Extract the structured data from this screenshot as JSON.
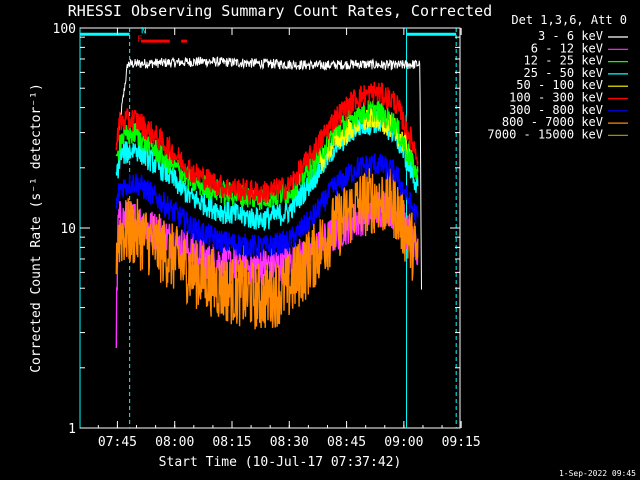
{
  "chart_data": {
    "type": "line",
    "title": "RHESSI Observing Summary Count Rates, Corrected",
    "xlabel": "Start Time (10-Jul-17 07:37:42)",
    "ylabel": "Corrected Count Rate (s⁻¹ detector⁻¹)",
    "yscale": "log",
    "ylim": [
      1,
      100
    ],
    "xlim_minutes": [
      -2.5,
      97.0
    ],
    "xticks": [
      {
        "label": "07:45",
        "minute": 7.3
      },
      {
        "label": "08:00",
        "minute": 22.3
      },
      {
        "label": "08:15",
        "minute": 37.3
      },
      {
        "label": "08:30",
        "minute": 52.3
      },
      {
        "label": "08:45",
        "minute": 67.3
      },
      {
        "label": "09:00",
        "minute": 82.3
      },
      {
        "label": "09:15",
        "minute": 97.3
      }
    ],
    "yticks": [
      {
        "label": "1",
        "value": 1
      },
      {
        "label": "10",
        "value": 10
      },
      {
        "label": "100",
        "value": 100
      }
    ],
    "legend_position": "right",
    "legend_header": "Det 1,3,6, Att 0",
    "series": [
      {
        "name": "3 - 6 keV",
        "color": "#ffffff",
        "values": [
          [
            7.0,
            25
          ],
          [
            10.0,
            66
          ],
          [
            20.0,
            67
          ],
          [
            30.0,
            68
          ],
          [
            40.0,
            67
          ],
          [
            50.0,
            66
          ],
          [
            60.0,
            65
          ],
          [
            70.0,
            66
          ],
          [
            80.0,
            65
          ],
          [
            86.5,
            66
          ],
          [
            87.0,
            3
          ]
        ]
      },
      {
        "name": "6 - 12 keV",
        "color": "#ff33ff",
        "values": [
          [
            7.0,
            3
          ],
          [
            7.5,
            11
          ],
          [
            12.0,
            11
          ],
          [
            20.0,
            9
          ],
          [
            30.0,
            7
          ],
          [
            40.0,
            6.5
          ],
          [
            50.0,
            6.5
          ],
          [
            58.0,
            7.5
          ],
          [
            66.0,
            10
          ],
          [
            73.0,
            12
          ],
          [
            78.0,
            13
          ],
          [
            82.0,
            11
          ],
          [
            86.0,
            7
          ]
        ]
      },
      {
        "name": "12 - 25 keV",
        "color": "#00ff00",
        "values": [
          [
            7.0,
            20
          ],
          [
            8.0,
            28
          ],
          [
            12.0,
            30
          ],
          [
            20.0,
            22
          ],
          [
            27.0,
            17
          ],
          [
            35.0,
            15
          ],
          [
            45.0,
            14
          ],
          [
            52.0,
            15
          ],
          [
            58.0,
            20
          ],
          [
            64.0,
            30
          ],
          [
            70.0,
            37
          ],
          [
            75.0,
            39
          ],
          [
            80.0,
            33
          ],
          [
            86.0,
            18
          ]
        ]
      },
      {
        "name": "25 - 50 keV",
        "color": "#00ffff",
        "values": [
          [
            7.0,
            18
          ],
          [
            8.0,
            23
          ],
          [
            12.0,
            25
          ],
          [
            20.0,
            19
          ],
          [
            27.0,
            14
          ],
          [
            35.0,
            12
          ],
          [
            45.0,
            11
          ],
          [
            52.0,
            12
          ],
          [
            58.0,
            17
          ],
          [
            64.0,
            25
          ],
          [
            70.0,
            32
          ],
          [
            75.0,
            34
          ],
          [
            80.0,
            30
          ],
          [
            86.0,
            16
          ]
        ]
      },
      {
        "name": "50 - 100 keV",
        "color": "#ffff00",
        "values": [
          [
            60.0,
            21
          ],
          [
            64.0,
            27
          ],
          [
            70.0,
            33
          ],
          [
            75.0,
            36
          ],
          [
            80.0,
            31
          ],
          [
            84.0,
            24
          ]
        ]
      },
      {
        "name": "100 - 300 keV",
        "color": "#ff0000",
        "values": [
          [
            7.0,
            28
          ],
          [
            8.0,
            34
          ],
          [
            12.0,
            35
          ],
          [
            20.0,
            26
          ],
          [
            27.0,
            19
          ],
          [
            35.0,
            16
          ],
          [
            45.0,
            15
          ],
          [
            52.0,
            16
          ],
          [
            58.0,
            23
          ],
          [
            64.0,
            35
          ],
          [
            70.0,
            45
          ],
          [
            75.0,
            48
          ],
          [
            80.0,
            43
          ],
          [
            86.0,
            23
          ]
        ]
      },
      {
        "name": "300 - 800 keV",
        "color": "#0000ff",
        "values": [
          [
            7.0,
            13
          ],
          [
            8.0,
            16
          ],
          [
            12.0,
            17
          ],
          [
            20.0,
            13
          ],
          [
            27.0,
            10
          ],
          [
            35.0,
            8.5
          ],
          [
            45.0,
            8
          ],
          [
            52.0,
            8.5
          ],
          [
            58.0,
            11
          ],
          [
            64.0,
            16
          ],
          [
            70.0,
            20
          ],
          [
            75.0,
            21
          ],
          [
            80.0,
            19
          ],
          [
            86.0,
            11
          ]
        ]
      },
      {
        "name": "800 - 7000 keV",
        "color": "#ff8800",
        "values": [
          [
            7.0,
            8
          ],
          [
            8.0,
            9.5
          ],
          [
            12.0,
            9.5
          ],
          [
            20.0,
            7.5
          ],
          [
            27.0,
            6
          ],
          [
            35.0,
            5
          ],
          [
            45.0,
            4.5
          ],
          [
            52.0,
            5
          ],
          [
            58.0,
            7
          ],
          [
            64.0,
            10
          ],
          [
            70.0,
            13
          ],
          [
            75.0,
            14
          ],
          [
            80.0,
            13
          ],
          [
            86.0,
            7
          ]
        ]
      },
      {
        "name": "7000 - 15000 keV",
        "color": "#aa8800",
        "values": []
      }
    ],
    "annotations": [
      {
        "label": "F",
        "color": "#ff0000",
        "minute": 12.5,
        "value": 85
      },
      {
        "label": "N",
        "color": "#00ffff",
        "minute": 13.5,
        "value": 94
      }
    ],
    "flag_bars": [
      {
        "color": "#00ffff",
        "from": -2.5,
        "to": 10.5,
        "value": 93
      },
      {
        "color": "#00ffff",
        "from": 83.0,
        "to": 96.0,
        "value": 93
      },
      {
        "color": "#ff0000",
        "from": 13.5,
        "to": 21.0,
        "value": 86
      },
      {
        "color": "#ff0000",
        "from": 24.0,
        "to": 25.5,
        "value": 86
      }
    ],
    "vertical_markers": [
      {
        "minute": -2.5,
        "color": "#00ffff",
        "style": "solid"
      },
      {
        "minute": 10.5,
        "color": "#00ffff",
        "style": "dashed"
      },
      {
        "minute": 83.0,
        "color": "#00ffff",
        "style": "solid"
      },
      {
        "minute": 96.0,
        "color": "#00ffff",
        "style": "dashed"
      }
    ]
  },
  "footer": {
    "date": "1-Sep-2022 09:45"
  }
}
